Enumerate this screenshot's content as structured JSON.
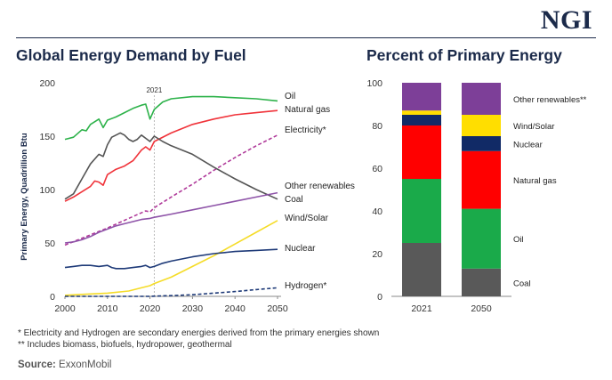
{
  "header": {
    "logo": "NGI",
    "left_title": "Global Energy Demand by Fuel",
    "right_title": "Percent of Primary Energy"
  },
  "footnotes": [
    "* Electricity and Hydrogen are secondary energies derived from the primary energies shown",
    "** Includes biomass, biofuels, hydropower, geothermal"
  ],
  "source": {
    "label": "Source:",
    "text": "ExxonMobil"
  },
  "chart_data": [
    {
      "type": "line",
      "title": "Global Energy Demand by Fuel",
      "ylabel": "Primary Energy, Quadrillion Btu",
      "xlabel": "",
      "xlim": [
        2000,
        2050
      ],
      "ylim": [
        0,
        200
      ],
      "x_ticks": [
        "2000",
        "2010",
        "2020",
        "2030",
        "2040",
        "2050"
      ],
      "y_ticks": [
        "0",
        "50",
        "100",
        "150",
        "200"
      ],
      "annotation": {
        "x": 2021,
        "label": "2021"
      },
      "grid": false,
      "series": [
        {
          "name": "Oil",
          "color": "#2db24a",
          "dashed": false,
          "points": [
            [
              2000,
              147
            ],
            [
              2002,
              149
            ],
            [
              2004,
              156
            ],
            [
              2005,
              155
            ],
            [
              2006,
              161
            ],
            [
              2008,
              166
            ],
            [
              2009,
              158
            ],
            [
              2010,
              165
            ],
            [
              2012,
              168
            ],
            [
              2014,
              172
            ],
            [
              2016,
              176
            ],
            [
              2018,
              179
            ],
            [
              2019,
              180
            ],
            [
              2020,
              166
            ],
            [
              2021,
              175
            ],
            [
              2023,
              182
            ],
            [
              2025,
              185
            ],
            [
              2030,
              187
            ],
            [
              2035,
              187
            ],
            [
              2040,
              186
            ],
            [
              2045,
              185
            ],
            [
              2050,
              183
            ]
          ]
        },
        {
          "name": "Natural gas",
          "color": "#f0333a",
          "dashed": false,
          "points": [
            [
              2000,
              89
            ],
            [
              2002,
              93
            ],
            [
              2004,
              98
            ],
            [
              2006,
              103
            ],
            [
              2007,
              108
            ],
            [
              2008,
              107
            ],
            [
              2009,
              104
            ],
            [
              2010,
              114
            ],
            [
              2012,
              119
            ],
            [
              2014,
              122
            ],
            [
              2016,
              127
            ],
            [
              2018,
              137
            ],
            [
              2019,
              140
            ],
            [
              2020,
              137
            ],
            [
              2021,
              145
            ],
            [
              2025,
              153
            ],
            [
              2030,
              161
            ],
            [
              2035,
              166
            ],
            [
              2040,
              170
            ],
            [
              2045,
              172
            ],
            [
              2050,
              174
            ]
          ]
        },
        {
          "name": "Electricity*",
          "color": "#b03a9a",
          "dashed": true,
          "points": [
            [
              2000,
              48
            ],
            [
              2005,
              56
            ],
            [
              2010,
              64
            ],
            [
              2015,
              73
            ],
            [
              2019,
              80
            ],
            [
              2020,
              79
            ],
            [
              2021,
              83
            ],
            [
              2025,
              93
            ],
            [
              2030,
              105
            ],
            [
              2035,
              118
            ],
            [
              2040,
              130
            ],
            [
              2045,
              141
            ],
            [
              2050,
              151
            ]
          ]
        },
        {
          "name": "Coal",
          "color": "#555555",
          "dashed": false,
          "points": [
            [
              2000,
              91
            ],
            [
              2002,
              96
            ],
            [
              2004,
              110
            ],
            [
              2006,
              124
            ],
            [
              2008,
              133
            ],
            [
              2009,
              131
            ],
            [
              2010,
              142
            ],
            [
              2011,
              149
            ],
            [
              2012,
              151
            ],
            [
              2013,
              153
            ],
            [
              2014,
              151
            ],
            [
              2015,
              147
            ],
            [
              2016,
              145
            ],
            [
              2017,
              147
            ],
            [
              2018,
              151
            ],
            [
              2019,
              148
            ],
            [
              2020,
              145
            ],
            [
              2021,
              150
            ],
            [
              2023,
              145
            ],
            [
              2025,
              141
            ],
            [
              2030,
              133
            ],
            [
              2035,
              121
            ],
            [
              2040,
              110
            ],
            [
              2045,
              100
            ],
            [
              2050,
              91
            ]
          ]
        },
        {
          "name": "Other renewables**",
          "label": "Other renewables",
          "color": "#8e53a8",
          "dashed": false,
          "points": [
            [
              2000,
              50
            ],
            [
              2002,
              51
            ],
            [
              2004,
              53
            ],
            [
              2006,
              56
            ],
            [
              2008,
              60
            ],
            [
              2010,
              63
            ],
            [
              2012,
              66
            ],
            [
              2014,
              68
            ],
            [
              2016,
              70
            ],
            [
              2018,
              72
            ],
            [
              2020,
              73
            ],
            [
              2021,
              74
            ],
            [
              2025,
              77
            ],
            [
              2030,
              81
            ],
            [
              2035,
              85
            ],
            [
              2040,
              89
            ],
            [
              2045,
              93
            ],
            [
              2050,
              97
            ]
          ]
        },
        {
          "name": "Wind/Solar",
          "color": "#f5dc28",
          "dashed": false,
          "points": [
            [
              2000,
              1
            ],
            [
              2005,
              2
            ],
            [
              2010,
              3
            ],
            [
              2015,
              5
            ],
            [
              2018,
              8
            ],
            [
              2020,
              10
            ],
            [
              2021,
              12
            ],
            [
              2025,
              18
            ],
            [
              2030,
              28
            ],
            [
              2035,
              38
            ],
            [
              2040,
              49
            ],
            [
              2045,
              60
            ],
            [
              2050,
              71
            ]
          ]
        },
        {
          "name": "Nuclear",
          "color": "#1e3a78",
          "dashed": false,
          "points": [
            [
              2000,
              27
            ],
            [
              2002,
              28
            ],
            [
              2004,
              29
            ],
            [
              2006,
              29
            ],
            [
              2008,
              28
            ],
            [
              2010,
              29
            ],
            [
              2011,
              27
            ],
            [
              2012,
              26
            ],
            [
              2014,
              26
            ],
            [
              2016,
              27
            ],
            [
              2018,
              28
            ],
            [
              2019,
              29
            ],
            [
              2020,
              27
            ],
            [
              2021,
              28
            ],
            [
              2023,
              31
            ],
            [
              2025,
              33
            ],
            [
              2030,
              37
            ],
            [
              2035,
              40
            ],
            [
              2040,
              42
            ],
            [
              2045,
              43
            ],
            [
              2050,
              44
            ]
          ]
        },
        {
          "name": "Hydrogen*",
          "color": "#1e3a78",
          "dashed": true,
          "points": [
            [
              2000,
              0
            ],
            [
              2010,
              0
            ],
            [
              2020,
              0
            ],
            [
              2021,
              0.2
            ],
            [
              2025,
              0.7
            ],
            [
              2030,
              1.5
            ],
            [
              2035,
              3
            ],
            [
              2040,
              4.5
            ],
            [
              2045,
              6.3
            ],
            [
              2050,
              8
            ]
          ]
        }
      ]
    },
    {
      "type": "bar",
      "stacked": true,
      "title": "Percent of Primary Energy",
      "categories": [
        "2021",
        "2050"
      ],
      "ylim": [
        0,
        100
      ],
      "y_ticks": [
        "0",
        "20",
        "40",
        "60",
        "80",
        "100"
      ],
      "series": [
        {
          "name": "Coal",
          "color": "#595959",
          "values": [
            25,
            13
          ]
        },
        {
          "name": "Oil",
          "color": "#1aaa4a",
          "values": [
            30,
            28
          ]
        },
        {
          "name": "Natural gas",
          "color": "#ff0000",
          "values": [
            25,
            27
          ]
        },
        {
          "name": "Nuclear",
          "color": "#112a66",
          "values": [
            5,
            7
          ]
        },
        {
          "name": "Wind/Solar",
          "color": "#ffde00",
          "values": [
            2,
            10
          ]
        },
        {
          "name": "Other renewables**",
          "color": "#7d3f98",
          "values": [
            13,
            15
          ]
        }
      ]
    }
  ]
}
